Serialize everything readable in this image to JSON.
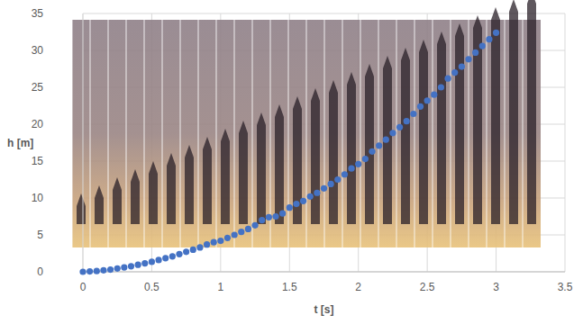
{
  "chart_data": {
    "type": "scatter",
    "x_label": "t [s]",
    "y_label": "h [m]",
    "color": "#4472c4",
    "marker": "circle",
    "grid": true,
    "xlim": [
      0,
      3.5
    ],
    "xticks": [
      0,
      0.5,
      1,
      1.5,
      2,
      2.5,
      3,
      3.5
    ],
    "ylim": [
      0,
      35
    ],
    "yticks": [
      0,
      5,
      10,
      15,
      20,
      25,
      30,
      35
    ],
    "x": [
      0,
      0.05,
      0.1,
      0.15,
      0.2,
      0.25,
      0.3,
      0.35,
      0.4,
      0.45,
      0.5,
      0.55,
      0.6,
      0.65,
      0.7,
      0.75,
      0.8,
      0.85,
      0.9,
      0.95,
      1.0,
      1.05,
      1.1,
      1.15,
      1.2,
      1.25,
      1.3,
      1.35,
      1.4,
      1.45,
      1.5,
      1.55,
      1.6,
      1.65,
      1.7,
      1.75,
      1.8,
      1.85,
      1.9,
      1.95,
      2.0,
      2.05,
      2.1,
      2.15,
      2.2,
      2.25,
      2.3,
      2.35,
      2.4,
      2.45,
      2.5,
      2.55,
      2.6,
      2.65,
      2.7,
      2.75,
      2.8,
      2.85,
      2.9,
      2.95,
      3.0
    ],
    "values": [
      0,
      0.05,
      0.1,
      0.2,
      0.3,
      0.45,
      0.6,
      0.75,
      0.95,
      1.15,
      1.35,
      1.6,
      1.85,
      2.1,
      2.4,
      2.7,
      3.0,
      3.3,
      3.7,
      4.0,
      4.2,
      4.6,
      5.0,
      5.4,
      5.8,
      6.3,
      7.0,
      7.4,
      7.5,
      7.9,
      8.7,
      9.2,
      9.6,
      10.2,
      10.7,
      11.3,
      11.9,
      12.5,
      13.2,
      14.0,
      14.6,
      15.3,
      16.3,
      17.1,
      17.9,
      18.8,
      19.6,
      20.4,
      21.4,
      22.4,
      23.2,
      24.0,
      25.0,
      26.2,
      27.0,
      27.8,
      28.8,
      29.7,
      30.6,
      31.5,
      32.4
    ]
  }
}
